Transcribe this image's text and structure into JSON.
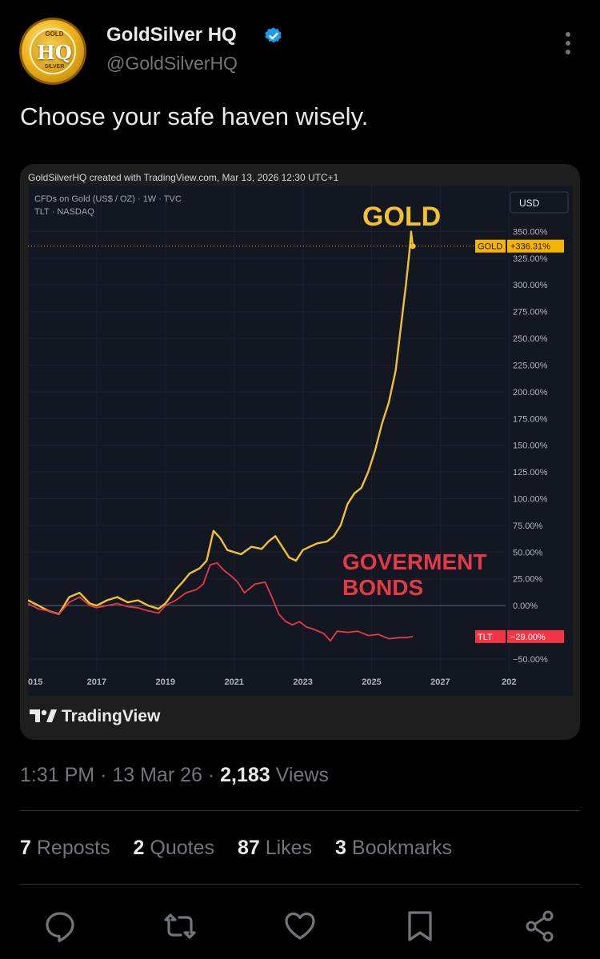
{
  "author": {
    "name": "GoldSilver HQ",
    "handle": "@GoldSilverHQ",
    "avatar_top": "GOLD",
    "avatar_text": "HQ",
    "avatar_bottom": "SILVER"
  },
  "tweet": {
    "text": "Choose your safe haven wisely.",
    "time": "1:31 PM",
    "date": "13 Mar 26",
    "views_count": "2,183",
    "views_label": "Views"
  },
  "stats": {
    "reposts": {
      "count": "7",
      "label": "Reposts"
    },
    "quotes": {
      "count": "2",
      "label": "Quotes"
    },
    "likes": {
      "count": "87",
      "label": "Likes"
    },
    "bookmarks": {
      "count": "3",
      "label": "Bookmarks"
    }
  },
  "card": {
    "caption": "GoldSilverHQ created with TradingView.com, Mar 13, 2026 12:30 UTC+1",
    "brand": "TradingView"
  },
  "icons": {
    "verified": "verified-badge-icon",
    "more": "more-options-icon",
    "reply": "reply-icon",
    "repost": "repost-icon",
    "like": "like-icon",
    "bookmark": "bookmark-icon",
    "share": "share-icon"
  },
  "colors": {
    "gold": "#f2c12e",
    "bond": "#e63946",
    "verified": "#1d9bf0",
    "gold_badge": "#f4b400",
    "tlt_badge": "#f23645"
  },
  "chart_data": {
    "type": "line",
    "symbol_line1": "CFDs on Gold (US$ / OZ) · 1W · TVC",
    "symbol_line2": "TLT · NASDAQ",
    "currency": "USD",
    "x_ticks": [
      "015",
      "2017",
      "2019",
      "2021",
      "2023",
      "2025",
      "2027",
      "202"
    ],
    "y_ticks": [
      "350.00%",
      "325.00%",
      "300.00%",
      "275.00%",
      "250.00%",
      "225.00%",
      "200.00%",
      "175.00%",
      "150.00%",
      "125.00%",
      "100.00%",
      "75.00%",
      "50.00%",
      "25.00%",
      "0.00%",
      "−50.00%"
    ],
    "y_tick_values": [
      350,
      325,
      300,
      275,
      250,
      225,
      200,
      175,
      150,
      125,
      100,
      75,
      50,
      25,
      0,
      -50
    ],
    "ylim": [
      -62,
      378
    ],
    "xlim": [
      2015.0,
      2028.9
    ],
    "annotation_gold": "GOLD",
    "annotation_bonds_line1": "GOVERMENT",
    "annotation_bonds_line2": "BONDS",
    "series": [
      {
        "name": "GOLD",
        "badge_value": "+336.31%",
        "last_value": 336.31,
        "x": [
          2015.0,
          2015.3,
          2015.6,
          2015.9,
          2016.2,
          2016.5,
          2016.8,
          2017.0,
          2017.3,
          2017.6,
          2017.9,
          2018.2,
          2018.5,
          2018.8,
          2019.0,
          2019.3,
          2019.5,
          2019.7,
          2020.0,
          2020.2,
          2020.4,
          2020.6,
          2020.8,
          2021.0,
          2021.2,
          2021.5,
          2021.8,
          2022.0,
          2022.2,
          2022.4,
          2022.6,
          2022.8,
          2023.0,
          2023.2,
          2023.4,
          2023.7,
          2023.9,
          2024.1,
          2024.3,
          2024.5,
          2024.7,
          2024.9,
          2025.1,
          2025.3,
          2025.5,
          2025.7,
          2025.85,
          2026.0,
          2026.1,
          2026.15,
          2026.2
        ],
        "y": [
          5,
          0,
          -5,
          -8,
          8,
          12,
          2,
          0,
          5,
          8,
          3,
          5,
          0,
          -3,
          2,
          15,
          22,
          30,
          35,
          42,
          70,
          63,
          52,
          50,
          48,
          55,
          53,
          60,
          65,
          55,
          45,
          42,
          52,
          55,
          58,
          60,
          65,
          75,
          95,
          105,
          110,
          125,
          145,
          170,
          190,
          220,
          260,
          300,
          330,
          350,
          336.31
        ]
      },
      {
        "name": "TLT",
        "badge_value": "−29.00%",
        "last_value": -29.0,
        "x": [
          2015.0,
          2015.3,
          2015.6,
          2015.9,
          2016.2,
          2016.5,
          2016.8,
          2017.0,
          2017.3,
          2017.6,
          2017.9,
          2018.2,
          2018.5,
          2018.8,
          2019.0,
          2019.3,
          2019.6,
          2019.9,
          2020.1,
          2020.3,
          2020.5,
          2020.7,
          2020.9,
          2021.1,
          2021.3,
          2021.6,
          2021.9,
          2022.1,
          2022.3,
          2022.5,
          2022.7,
          2022.9,
          2023.1,
          2023.3,
          2023.6,
          2023.8,
          2024.0,
          2024.3,
          2024.6,
          2024.9,
          2025.2,
          2025.5,
          2025.8,
          2026.0,
          2026.2
        ],
        "y": [
          2,
          -3,
          -5,
          -8,
          3,
          8,
          0,
          -2,
          0,
          2,
          -1,
          -2,
          -5,
          -7,
          0,
          5,
          12,
          15,
          20,
          38,
          40,
          33,
          28,
          22,
          12,
          20,
          22,
          8,
          -8,
          -15,
          -18,
          -15,
          -20,
          -22,
          -26,
          -33,
          -24,
          -25,
          -24,
          -28,
          -27,
          -31,
          -30,
          -30,
          -29
        ]
      }
    ]
  }
}
